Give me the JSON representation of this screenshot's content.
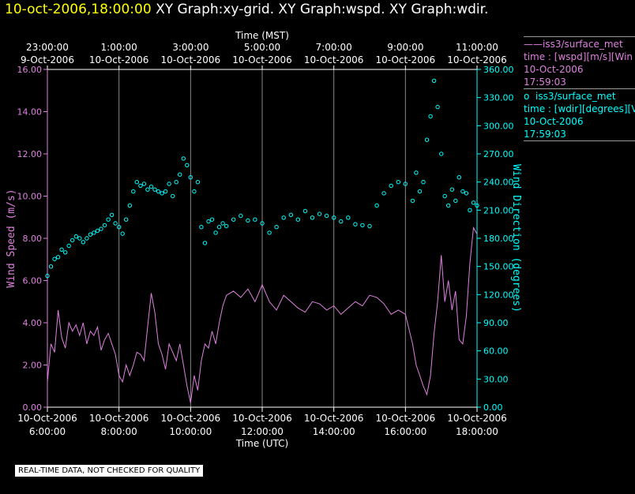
{
  "header": {
    "date": "10-oct-2006,18:00:00",
    "graphs": "XY Graph:xy-grid.  XY Graph:wspd.  XY Graph:wdir."
  },
  "legend": {
    "wspd": {
      "marker": "——",
      "name": "iss3/surface_met",
      "line2": "time : [wspd][m/s][Win",
      "date": "10-Oct-2006",
      "time": "17:59:03"
    },
    "wdir": {
      "marker": "o",
      "name": "iss3/surface_met",
      "line2": "time : [wdir][degrees][V",
      "date": "10-Oct-2006",
      "time": "17:59:03"
    }
  },
  "note": "REAL-TIME DATA, NOT CHECKED FOR QUALITY",
  "chart_data": {
    "type": "line",
    "title": "10-oct-2006,18:00:00",
    "xlabel_bottom": "Time (UTC)",
    "xlabel_top": "Time (MST)",
    "ylabel_left": "Wind Speed (m/s)",
    "ylabel_right": "Wind Direction (degrees)",
    "xlim": [
      6.0,
      18.0
    ],
    "ylim_left": [
      0,
      16
    ],
    "ylim_right": [
      0,
      360
    ],
    "grid": true,
    "colors": {
      "wspd": "#e080e0",
      "wdir": "#00ffff",
      "grid": "#8a8a8a",
      "axis": "#ffffff"
    },
    "top_ticks": [
      {
        "x": 6,
        "time": "23:00:00",
        "date": "9-Oct-2006"
      },
      {
        "x": 8,
        "time": "1:00:00",
        "date": "10-Oct-2006"
      },
      {
        "x": 10,
        "time": "3:00:00",
        "date": "10-Oct-2006"
      },
      {
        "x": 12,
        "time": "5:00:00",
        "date": "10-Oct-2006"
      },
      {
        "x": 14,
        "time": "7:00:00",
        "date": "10-Oct-2006"
      },
      {
        "x": 16,
        "time": "9:00:00",
        "date": "10-Oct-2006"
      },
      {
        "x": 18,
        "time": "11:00:00",
        "date": "10-Oct-2006"
      }
    ],
    "bottom_ticks": [
      {
        "x": 6,
        "date": "10-Oct-2006",
        "time": "6:00:00"
      },
      {
        "x": 8,
        "date": "10-Oct-2006",
        "time": "8:00:00"
      },
      {
        "x": 10,
        "date": "10-Oct-2006",
        "time": "10:00:00"
      },
      {
        "x": 12,
        "date": "10-Oct-2006",
        "time": "12:00:00"
      },
      {
        "x": 14,
        "date": "10-Oct-2006",
        "time": "14:00:00"
      },
      {
        "x": 16,
        "date": "10-Oct-2006",
        "time": "16:00:00"
      },
      {
        "x": 18,
        "date": "10-Oct-2006",
        "time": "18:00:00"
      }
    ],
    "left_ticks": [
      {
        "v": 0,
        "label": "0.00"
      },
      {
        "v": 2,
        "label": "2.00"
      },
      {
        "v": 4,
        "label": "4.00"
      },
      {
        "v": 6,
        "label": "6.00"
      },
      {
        "v": 8,
        "label": "8.00"
      },
      {
        "v": 10,
        "label": "10.00"
      },
      {
        "v": 12,
        "label": "12.00"
      },
      {
        "v": 14,
        "label": "14.00"
      },
      {
        "v": 16,
        "label": "16.00"
      }
    ],
    "right_ticks": [
      {
        "v": 0,
        "label": "0.00"
      },
      {
        "v": 30,
        "label": "30.00"
      },
      {
        "v": 60,
        "label": "60.00"
      },
      {
        "v": 90,
        "label": "90.00"
      },
      {
        "v": 120,
        "label": "120.00"
      },
      {
        "v": 150,
        "label": "150.00"
      },
      {
        "v": 180,
        "label": "180.00"
      },
      {
        "v": 210,
        "label": "210.00"
      },
      {
        "v": 240,
        "label": "240.00"
      },
      {
        "v": 270,
        "label": "270.00"
      },
      {
        "v": 300,
        "label": "300.00"
      },
      {
        "v": 330,
        "label": "330.00"
      },
      {
        "v": 360,
        "label": "360.00"
      }
    ],
    "series": [
      {
        "name": "wspd",
        "axis": "left",
        "style": "line",
        "x": [
          6.0,
          6.1,
          6.2,
          6.3,
          6.4,
          6.5,
          6.6,
          6.7,
          6.8,
          6.9,
          7.0,
          7.1,
          7.2,
          7.3,
          7.4,
          7.5,
          7.6,
          7.7,
          7.8,
          7.9,
          8.0,
          8.1,
          8.2,
          8.3,
          8.4,
          8.5,
          8.6,
          8.7,
          8.8,
          8.9,
          9.0,
          9.1,
          9.2,
          9.3,
          9.4,
          9.5,
          9.6,
          9.7,
          9.8,
          9.9,
          10.0,
          10.1,
          10.2,
          10.3,
          10.4,
          10.5,
          10.6,
          10.7,
          10.8,
          10.9,
          11.0,
          11.2,
          11.4,
          11.6,
          11.8,
          12.0,
          12.2,
          12.4,
          12.6,
          12.8,
          13.0,
          13.2,
          13.4,
          13.6,
          13.8,
          14.0,
          14.2,
          14.4,
          14.6,
          14.8,
          15.0,
          15.2,
          15.4,
          15.6,
          15.8,
          16.0,
          16.2,
          16.3,
          16.4,
          16.5,
          16.6,
          16.7,
          16.8,
          16.9,
          17.0,
          17.1,
          17.2,
          17.3,
          17.4,
          17.5,
          17.6,
          17.7,
          17.8,
          17.9,
          18.0
        ],
        "values": [
          1.2,
          3.0,
          2.6,
          4.6,
          3.3,
          2.8,
          4.0,
          3.6,
          3.9,
          3.4,
          4.0,
          3.0,
          3.6,
          3.4,
          3.8,
          2.7,
          3.2,
          3.5,
          3.0,
          2.5,
          1.5,
          1.2,
          2.0,
          1.5,
          2.0,
          2.6,
          2.5,
          2.2,
          3.8,
          5.4,
          4.5,
          3.0,
          2.5,
          1.8,
          3.0,
          2.6,
          2.2,
          3.0,
          2.0,
          1.0,
          0.2,
          1.5,
          0.8,
          2.2,
          3.0,
          2.8,
          3.6,
          3.0,
          4.0,
          4.8,
          5.3,
          5.5,
          5.2,
          5.6,
          5.0,
          5.8,
          5.0,
          4.6,
          5.3,
          5.0,
          4.7,
          4.5,
          5.0,
          4.9,
          4.6,
          4.8,
          4.4,
          4.7,
          5.0,
          4.8,
          5.3,
          5.2,
          4.9,
          4.4,
          4.6,
          4.4,
          3.0,
          2.0,
          1.5,
          1.0,
          0.6,
          1.5,
          3.5,
          5.0,
          7.2,
          5.0,
          6.0,
          4.6,
          5.5,
          3.2,
          3.0,
          4.3,
          6.8,
          8.5,
          8.2
        ]
      },
      {
        "name": "wdir",
        "axis": "right",
        "style": "scatter",
        "x": [
          6.0,
          6.1,
          6.2,
          6.3,
          6.4,
          6.5,
          6.6,
          6.7,
          6.8,
          6.9,
          7.0,
          7.1,
          7.2,
          7.3,
          7.4,
          7.5,
          7.6,
          7.7,
          7.8,
          7.9,
          8.0,
          8.1,
          8.2,
          8.3,
          8.4,
          8.5,
          8.6,
          8.7,
          8.8,
          8.9,
          9.0,
          9.1,
          9.2,
          9.3,
          9.4,
          9.5,
          9.6,
          9.7,
          9.8,
          9.9,
          10.0,
          10.1,
          10.2,
          10.3,
          10.4,
          10.5,
          10.6,
          10.7,
          10.8,
          10.9,
          11.0,
          11.2,
          11.4,
          11.6,
          11.8,
          12.0,
          12.2,
          12.4,
          12.6,
          12.8,
          13.0,
          13.2,
          13.4,
          13.6,
          13.8,
          14.0,
          14.2,
          14.4,
          14.6,
          14.8,
          15.0,
          15.2,
          15.4,
          15.6,
          15.8,
          16.0,
          16.2,
          16.3,
          16.4,
          16.5,
          16.6,
          16.7,
          16.8,
          16.9,
          17.0,
          17.1,
          17.2,
          17.3,
          17.4,
          17.5,
          17.6,
          17.7,
          17.8,
          17.9,
          18.0
        ],
        "values": [
          140,
          150,
          158,
          160,
          168,
          165,
          172,
          178,
          182,
          180,
          176,
          180,
          184,
          186,
          188,
          190,
          194,
          200,
          205,
          196,
          192,
          185,
          200,
          215,
          230,
          240,
          236,
          238,
          232,
          235,
          232,
          230,
          228,
          230,
          238,
          225,
          240,
          248,
          265,
          258,
          245,
          230,
          240,
          192,
          175,
          198,
          200,
          186,
          192,
          196,
          193,
          200,
          204,
          199,
          200,
          196,
          186,
          192,
          202,
          205,
          200,
          209,
          202,
          206,
          204,
          202,
          198,
          202,
          195,
          194,
          193,
          215,
          228,
          236,
          240,
          238,
          220,
          250,
          230,
          240,
          285,
          310,
          348,
          320,
          270,
          225,
          215,
          232,
          220,
          245,
          230,
          228,
          210,
          218,
          215
        ]
      }
    ]
  }
}
